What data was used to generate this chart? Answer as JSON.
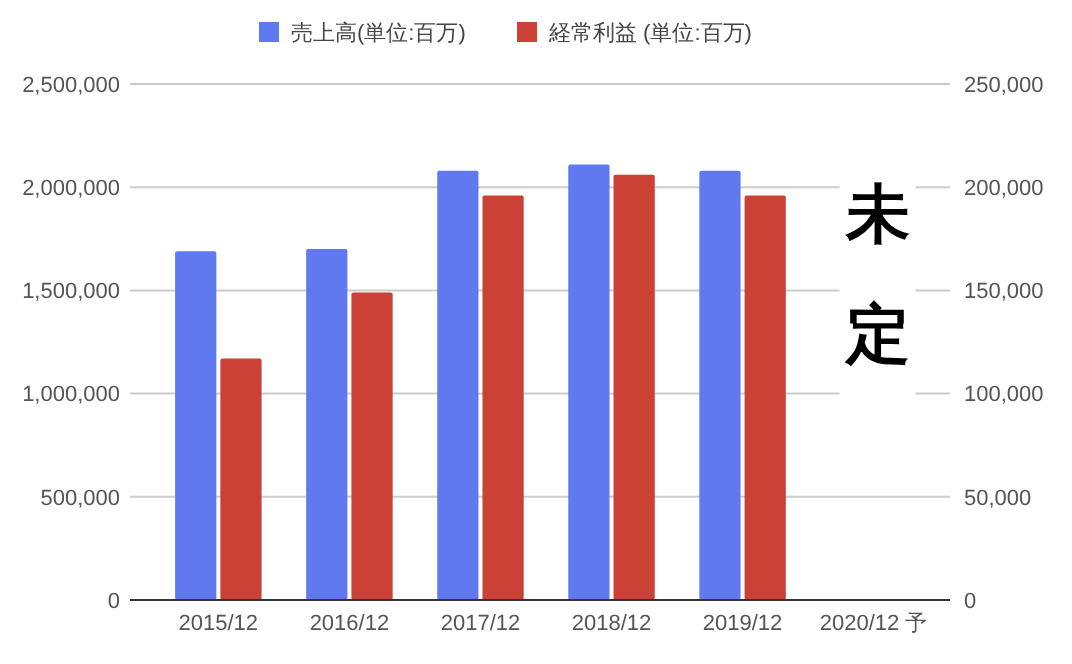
{
  "chart_data": {
    "type": "bar",
    "categories": [
      "2015/12",
      "2016/12",
      "2017/12",
      "2018/12",
      "2019/12",
      "2020/12 予"
    ],
    "series": [
      {
        "name": "売上高(単位:百万)",
        "color": "#6079f0",
        "values": [
          1690000,
          1700000,
          2080000,
          2110000,
          2080000,
          null
        ]
      },
      {
        "name": "経常利益 (単位:百万)",
        "color": "#cc4136",
        "axis": "y2",
        "values": [
          117000,
          149000,
          196000,
          206000,
          196000,
          null
        ]
      }
    ],
    "ylim": [
      0,
      2500000
    ],
    "yticks": [
      {
        "value": 0,
        "label": "0"
      },
      {
        "value": 500000,
        "label": "500,000"
      },
      {
        "value": 1000000,
        "label": "1,000,000"
      },
      {
        "value": 1500000,
        "label": "1,500,000"
      },
      {
        "value": 2000000,
        "label": "2,000,000"
      },
      {
        "value": 2500000,
        "label": "2,500,000"
      }
    ],
    "y2lim": [
      0,
      250000
    ],
    "y2ticks": [
      {
        "value": 0,
        "label": "0"
      },
      {
        "value": 50000,
        "label": "50,000"
      },
      {
        "value": 100000,
        "label": "100,000"
      },
      {
        "value": 150000,
        "label": "150,000"
      },
      {
        "value": 200000,
        "label": "200,000"
      },
      {
        "value": 250000,
        "label": "250,000"
      }
    ],
    "grid": "y",
    "legend": "top",
    "annotations": [
      "未定"
    ]
  }
}
